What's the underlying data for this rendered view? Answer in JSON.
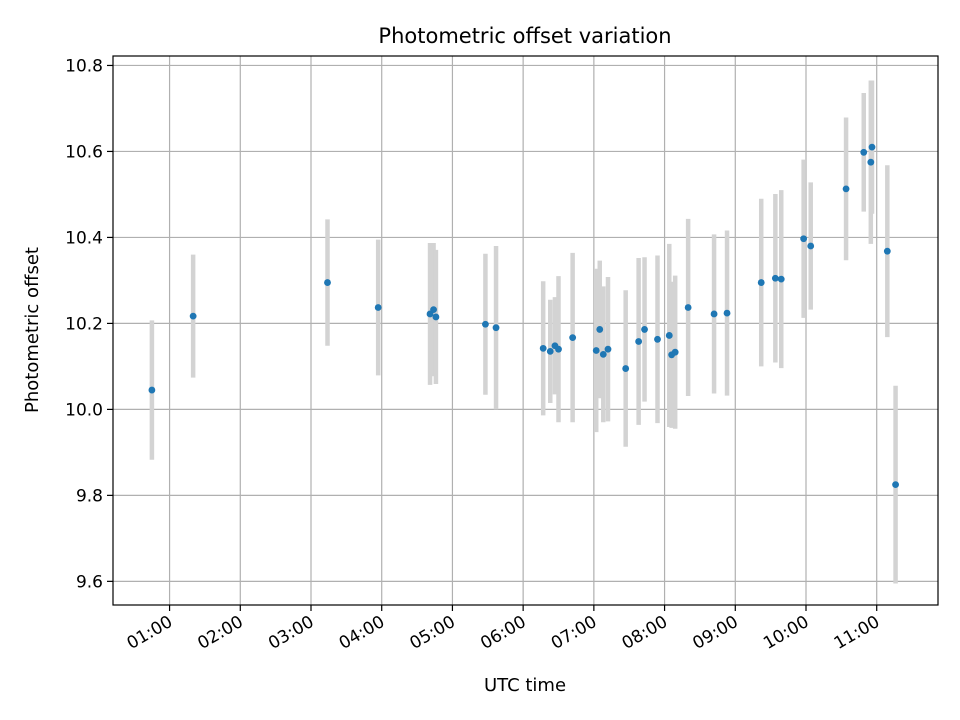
{
  "chart_data": {
    "type": "scatter",
    "title": "Photometric offset variation",
    "xlabel": "UTC time",
    "ylabel": "Photometric offset",
    "xlim": [
      "00:12",
      "11:52"
    ],
    "ylim": [
      9.545,
      10.822
    ],
    "x_ticks": [
      "01:00",
      "02:00",
      "03:00",
      "04:00",
      "05:00",
      "06:00",
      "07:00",
      "08:00",
      "09:00",
      "10:00",
      "11:00"
    ],
    "y_ticks": [
      "9.6",
      "9.8",
      "10.0",
      "10.2",
      "10.4",
      "10.6",
      "10.8"
    ],
    "grid": true,
    "colors": {
      "point": "#1f77b4",
      "errorbar": "#d3d3d3",
      "grid": "#b0b0b0"
    },
    "points": [
      {
        "t": "00:45",
        "y": 10.045,
        "err": 0.162
      },
      {
        "t": "01:20",
        "y": 10.217,
        "err": 0.143
      },
      {
        "t": "03:14",
        "y": 10.295,
        "err": 0.147
      },
      {
        "t": "03:57",
        "y": 10.237,
        "err": 0.158
      },
      {
        "t": "04:41",
        "y": 10.222,
        "err": 0.165
      },
      {
        "t": "04:44",
        "y": 10.232,
        "err": 0.155
      },
      {
        "t": "04:46",
        "y": 10.215,
        "err": 0.156
      },
      {
        "t": "05:28",
        "y": 10.198,
        "err": 0.164
      },
      {
        "t": "05:37",
        "y": 10.19,
        "err": 0.19
      },
      {
        "t": "06:17",
        "y": 10.142,
        "err": 0.156
      },
      {
        "t": "06:23",
        "y": 10.135,
        "err": 0.12
      },
      {
        "t": "06:27",
        "y": 10.148,
        "err": 0.113
      },
      {
        "t": "06:30",
        "y": 10.14,
        "err": 0.17
      },
      {
        "t": "06:42",
        "y": 10.167,
        "err": 0.197
      },
      {
        "t": "07:02",
        "y": 10.137,
        "err": 0.19
      },
      {
        "t": "07:05",
        "y": 10.186,
        "err": 0.16
      },
      {
        "t": "07:08",
        "y": 10.128,
        "err": 0.158
      },
      {
        "t": "07:12",
        "y": 10.14,
        "err": 0.168
      },
      {
        "t": "07:27",
        "y": 10.095,
        "err": 0.182
      },
      {
        "t": "07:38",
        "y": 10.158,
        "err": 0.194
      },
      {
        "t": "07:43",
        "y": 10.186,
        "err": 0.168
      },
      {
        "t": "07:54",
        "y": 10.163,
        "err": 0.195
      },
      {
        "t": "08:04",
        "y": 10.172,
        "err": 0.213
      },
      {
        "t": "08:06",
        "y": 10.127,
        "err": 0.17
      },
      {
        "t": "08:09",
        "y": 10.133,
        "err": 0.178
      },
      {
        "t": "08:20",
        "y": 10.237,
        "err": 0.206
      },
      {
        "t": "08:42",
        "y": 10.222,
        "err": 0.185
      },
      {
        "t": "08:53",
        "y": 10.224,
        "err": 0.192
      },
      {
        "t": "09:22",
        "y": 10.295,
        "err": 0.195
      },
      {
        "t": "09:34",
        "y": 10.305,
        "err": 0.196
      },
      {
        "t": "09:39",
        "y": 10.303,
        "err": 0.207
      },
      {
        "t": "09:58",
        "y": 10.397,
        "err": 0.184
      },
      {
        "t": "10:04",
        "y": 10.38,
        "err": 0.148
      },
      {
        "t": "10:34",
        "y": 10.513,
        "err": 0.166
      },
      {
        "t": "10:49",
        "y": 10.598,
        "err": 0.138
      },
      {
        "t": "10:55",
        "y": 10.575,
        "err": 0.19
      },
      {
        "t": "10:56",
        "y": 10.61,
        "err": 0.155
      },
      {
        "t": "11:09",
        "y": 10.368,
        "err": 0.2
      },
      {
        "t": "11:16",
        "y": 9.825,
        "err": 0.23
      }
    ]
  }
}
